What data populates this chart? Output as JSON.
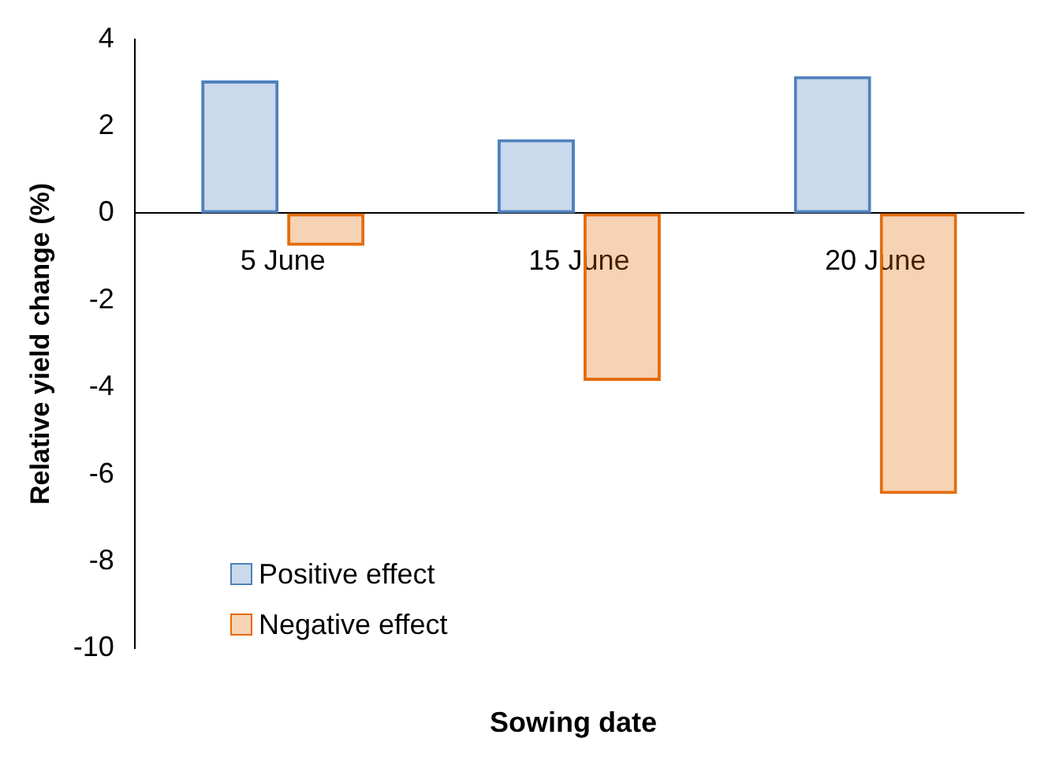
{
  "chart_data": {
    "type": "bar",
    "xlabel": "Sowing date",
    "ylabel": "Relative yield change (%)",
    "categories": [
      "5 June",
      "15 June",
      "20 June"
    ],
    "series": [
      {
        "name": "Positive effect",
        "color": "#4f81bd",
        "values": [
          3.05,
          1.7,
          3.15
        ]
      },
      {
        "name": "Negative effect",
        "color": "#e46c0a",
        "values": [
          -0.75,
          -3.85,
          -6.45
        ]
      }
    ],
    "ylim": [
      -10,
      4
    ],
    "yticks": [
      -10,
      -8,
      -6,
      -4,
      -2,
      0,
      2,
      4
    ],
    "grid": false,
    "legend": "bottom left"
  }
}
